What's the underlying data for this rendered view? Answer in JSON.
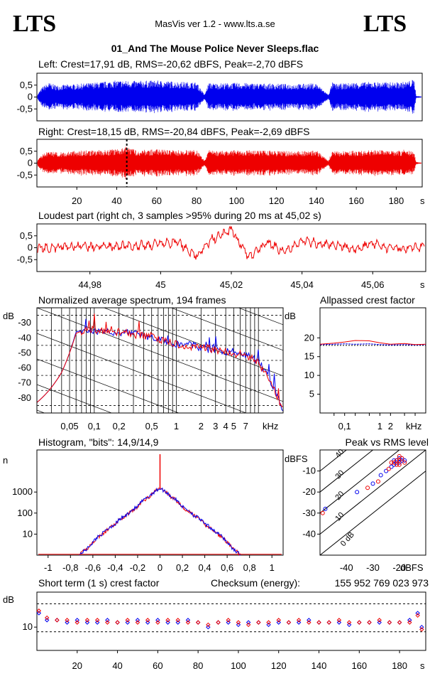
{
  "header": {
    "logo_left": "LTS",
    "logo_right": "LTS",
    "app_title": "MasVis ver 1.2 - www.lts.a.se",
    "file_name": "01_And The Mouse Police Never Sleeps.flac"
  },
  "colors": {
    "left": "#0000ee",
    "right": "#ee0000",
    "grid": "#000000"
  },
  "panels": {
    "left_waveform": {
      "title": "Left: Crest=17,91 dB, RMS=-20,62 dBFS, Peak=-2,70 dBFS",
      "ytick_labels": [
        "0,5",
        "0",
        "-0,5"
      ]
    },
    "right_waveform": {
      "title": "Right: Crest=18,15 dB, RMS=-20,84 dBFS, Peak=-2,69 dBFS",
      "ytick_labels": [
        "0,5",
        "0",
        "-0,5"
      ],
      "xtick_labels": [
        "20",
        "40",
        "60",
        "80",
        "100",
        "120",
        "140",
        "160",
        "180"
      ],
      "x_unit": "s",
      "loudest_marker_s": 45.02
    },
    "loudest_part": {
      "title": "Loudest part (right ch, 3 samples >95% during 20 ms at 45,02 s)",
      "ytick_labels": [
        "0,5",
        "0",
        "-0,5"
      ],
      "xtick_labels": [
        "44,98",
        "45",
        "45,02",
        "45,04",
        "45,06"
      ],
      "x_unit": "s"
    },
    "spectrum": {
      "title": "Normalized average spectrum, 194 frames",
      "y_unit": "dB",
      "ytick_labels": [
        "-30",
        "-40",
        "-50",
        "-60",
        "-70",
        "-80"
      ],
      "xtick_labels": [
        "0,05",
        "0,1",
        "0,2",
        "0,5",
        "1",
        "2",
        "3",
        "4",
        "5",
        "7"
      ],
      "x_unit": "kHz"
    },
    "allpassed": {
      "title": "Allpassed crest factor",
      "y_unit": "dB",
      "ytick_labels": [
        "20",
        "15",
        "10",
        "5"
      ],
      "xtick_labels": [
        "0,1",
        "1",
        "2"
      ],
      "x_unit": "kHz"
    },
    "histogram": {
      "title": "Histogram, \"bits\": 14,9/14,9",
      "y_unit": "n",
      "ytick_labels": [
        "1000",
        "100",
        "10"
      ],
      "xtick_labels": [
        "-1",
        "-0,8",
        "-0,6",
        "-0,4",
        "-0,2",
        "0",
        "0,2",
        "0,4",
        "0,6",
        "0,8",
        "1"
      ]
    },
    "peak_rms": {
      "title": "Peak vs RMS level",
      "y_unit": "dBFS",
      "ytick_labels": [
        "-10",
        "-20",
        "-30",
        "-40"
      ],
      "xtick_labels": [
        "-40",
        "-30",
        "-20"
      ],
      "x_unit": "dBFS",
      "diag_labels": [
        "40",
        "30",
        "20",
        "10",
        "0 dB"
      ]
    },
    "short_term": {
      "title": "Short term (1 s) crest factor",
      "checksum_label": "Checksum (energy):",
      "checksum_value": "155 952 769 023 973",
      "y_unit": "dB",
      "ytick_labels": [
        "10"
      ],
      "xtick_labels": [
        "20",
        "40",
        "60",
        "80",
        "100",
        "120",
        "140",
        "160",
        "180"
      ],
      "x_unit": "s"
    }
  },
  "chart_data": [
    {
      "type": "area",
      "title": "Left: Crest=17,91 dB, RMS=-20,62 dBFS, Peak=-2,70 dBFS",
      "xlabel": "s",
      "ylabel": "",
      "xlim": [
        0,
        193
      ],
      "ylim": [
        -1,
        1
      ],
      "x": [
        0,
        3,
        6,
        10,
        20,
        30,
        40,
        50,
        60,
        70,
        80,
        84,
        86,
        90,
        100,
        110,
        120,
        130,
        140,
        146,
        148,
        150,
        160,
        170,
        180,
        185,
        189,
        190,
        193
      ],
      "series": [
        {
          "values": [
            0.08,
            0.45,
            0.6,
            0.5,
            0.55,
            0.62,
            0.7,
            0.68,
            0.7,
            0.65,
            0.62,
            0.1,
            0.6,
            0.58,
            0.6,
            0.58,
            0.56,
            0.55,
            0.58,
            0.1,
            0.62,
            0.55,
            0.62,
            0.64,
            0.62,
            0.65,
            0.75,
            0.05,
            0.02
          ]
        }
      ]
    },
    {
      "type": "area",
      "title": "Right: Crest=18,15 dB, RMS=-20,84 dBFS, Peak=-2,69 dBFS",
      "xlabel": "s",
      "ylabel": "",
      "xlim": [
        0,
        193
      ],
      "ylim": [
        -1,
        1
      ],
      "x": [
        0,
        3,
        6,
        10,
        20,
        30,
        40,
        45,
        50,
        60,
        70,
        80,
        84,
        86,
        90,
        100,
        110,
        120,
        130,
        140,
        146,
        148,
        150,
        160,
        170,
        180,
        185,
        189,
        190,
        193
      ],
      "series": [
        {
          "values": [
            0.08,
            0.4,
            0.5,
            0.45,
            0.52,
            0.55,
            0.6,
            0.7,
            0.55,
            0.58,
            0.55,
            0.56,
            0.1,
            0.55,
            0.52,
            0.55,
            0.54,
            0.52,
            0.5,
            0.55,
            0.1,
            0.55,
            0.5,
            0.52,
            0.55,
            0.53,
            0.58,
            0.45,
            0.05,
            0.02
          ]
        }
      ]
    },
    {
      "type": "line",
      "title": "Loudest part (right ch, 3 samples >95% during 20 ms at 45,02 s)",
      "xlabel": "s",
      "ylabel": "",
      "xlim": [
        44.965,
        45.075
      ],
      "ylim": [
        -1,
        1
      ],
      "x": [
        44.965,
        44.975,
        44.985,
        44.995,
        45.0,
        45.005,
        45.01,
        45.015,
        45.02,
        45.025,
        45.03,
        45.035,
        45.04,
        45.045,
        45.05,
        45.055,
        45.06,
        45.065,
        45.075
      ],
      "series": [
        {
          "name": "right",
          "values": [
            -0.02,
            0.05,
            0.05,
            0.1,
            0.15,
            0.25,
            -0.35,
            0.4,
            0.75,
            -0.4,
            0.25,
            -0.2,
            0.3,
            0.15,
            0.15,
            -0.1,
            0.2,
            -0.05,
            0.05
          ]
        }
      ]
    },
    {
      "type": "line",
      "title": "Normalized average spectrum, 194 frames",
      "xlabel": "kHz",
      "ylabel": "dB",
      "xlim": [
        0.02,
        20
      ],
      "ylim": [
        -90,
        -20
      ],
      "log_x": true,
      "x": [
        0.02,
        0.03,
        0.04,
        0.05,
        0.06,
        0.08,
        0.1,
        0.15,
        0.2,
        0.3,
        0.5,
        0.7,
        1,
        1.5,
        2,
        3,
        4,
        5,
        6,
        7,
        8,
        10,
        12,
        15,
        20
      ],
      "series": [
        {
          "name": "left",
          "values": [
            -83,
            -73,
            -63,
            -50,
            -36,
            -34,
            -36,
            -35,
            -37,
            -37,
            -40,
            -42,
            -44,
            -45,
            -47,
            -48,
            -49,
            -50,
            -51,
            -51,
            -52,
            -56,
            -62,
            -72,
            -88
          ]
        },
        {
          "name": "right",
          "values": [
            -83,
            -73,
            -63,
            -50,
            -37,
            -34,
            -35,
            -36,
            -36,
            -38,
            -39,
            -42,
            -44,
            -46,
            -46,
            -48,
            -49,
            -51,
            -50,
            -52,
            -53,
            -57,
            -63,
            -73,
            -88
          ]
        }
      ]
    },
    {
      "type": "line",
      "title": "Allpassed crest factor",
      "xlabel": "kHz",
      "ylabel": "dB",
      "xlim": [
        0.02,
        20
      ],
      "ylim": [
        0,
        28
      ],
      "log_x": true,
      "x": [
        0.02,
        0.05,
        0.1,
        0.2,
        0.5,
        1,
        2,
        5,
        10,
        20
      ],
      "series": [
        {
          "name": "left",
          "values": [
            18.2,
            18.3,
            18.4,
            18.3,
            18.4,
            18.2,
            18.1,
            18.2,
            18.1,
            18.2
          ]
        },
        {
          "name": "right",
          "values": [
            18.3,
            18.6,
            18.9,
            19.3,
            19.2,
            18.7,
            18.3,
            18.5,
            18.2,
            18.3
          ]
        }
      ]
    },
    {
      "type": "line",
      "title": "Histogram, \"bits\": 14,9/14,9",
      "xlabel": "",
      "ylabel": "n",
      "xlim": [
        -1.1,
        1.1
      ],
      "ylim": [
        1,
        100000
      ],
      "log_y": true,
      "x": [
        -0.72,
        -0.65,
        -0.6,
        -0.5,
        -0.4,
        -0.3,
        -0.2,
        -0.1,
        0,
        0.1,
        0.2,
        0.3,
        0.4,
        0.5,
        0.6,
        0.65,
        0.72
      ],
      "series": [
        {
          "name": "left",
          "values": [
            1,
            2,
            4,
            12,
            30,
            80,
            200,
            600,
            1500,
            600,
            200,
            80,
            30,
            12,
            4,
            2,
            1
          ]
        },
        {
          "name": "right",
          "values": [
            1,
            2,
            4,
            11,
            28,
            78,
            190,
            580,
            1500,
            580,
            190,
            78,
            28,
            11,
            4,
            2,
            1
          ]
        }
      ]
    },
    {
      "type": "scatter",
      "title": "Peak vs RMS level",
      "xlabel": "dBFS",
      "ylabel": "dBFS",
      "xlim": [
        -50,
        -10
      ],
      "ylim": [
        -50,
        0
      ],
      "series": [
        {
          "name": "left",
          "points": [
            [
              -22,
              -5
            ],
            [
              -21,
              -6
            ],
            [
              -20,
              -4
            ],
            [
              -19,
              -5
            ],
            [
              -23,
              -8
            ],
            [
              -22,
              -7
            ],
            [
              -21,
              -5
            ],
            [
              -20,
              -6
            ],
            [
              -25,
              -10
            ],
            [
              -27,
              -12
            ],
            [
              -30,
              -16
            ],
            [
              -36,
              -20
            ],
            [
              -48,
              -28
            ],
            [
              -19,
              -4
            ],
            [
              -18,
              -5
            ]
          ]
        },
        {
          "name": "right",
          "points": [
            [
              -21,
              -5
            ],
            [
              -20,
              -5
            ],
            [
              -22,
              -6
            ],
            [
              -19,
              -4
            ],
            [
              -21,
              -7
            ],
            [
              -23,
              -6
            ],
            [
              -20,
              -3
            ],
            [
              -24,
              -9
            ],
            [
              -28,
              -15
            ],
            [
              -32,
              -18
            ],
            [
              -49,
              -30
            ],
            [
              -18,
              -6
            ],
            [
              -20,
              -7
            ]
          ]
        }
      ]
    },
    {
      "type": "scatter",
      "title": "Short term (1 s) crest factor",
      "xlabel": "s",
      "ylabel": "dB",
      "xlim": [
        0,
        193
      ],
      "ylim": [
        0,
        25
      ],
      "x": [
        1,
        5,
        10,
        15,
        20,
        25,
        30,
        35,
        40,
        45,
        50,
        55,
        60,
        65,
        70,
        75,
        80,
        85,
        90,
        95,
        100,
        105,
        110,
        115,
        120,
        125,
        130,
        135,
        140,
        145,
        150,
        155,
        160,
        165,
        170,
        175,
        180,
        185,
        189,
        191
      ],
      "series": [
        {
          "name": "left",
          "values": [
            16,
            13,
            13,
            12,
            13,
            12,
            12,
            13,
            12,
            12,
            13,
            12,
            13,
            12,
            12,
            13,
            12,
            10,
            12,
            12,
            11,
            12,
            12,
            11,
            12,
            12,
            12,
            13,
            12,
            12,
            12,
            11,
            12,
            12,
            12,
            12,
            12,
            13,
            16,
            10
          ]
        },
        {
          "name": "right",
          "values": [
            17,
            14,
            13,
            13,
            12,
            13,
            13,
            12,
            12,
            13,
            12,
            13,
            12,
            13,
            13,
            12,
            12,
            11,
            12,
            13,
            12,
            11,
            12,
            12,
            13,
            12,
            13,
            12,
            12,
            12,
            13,
            12,
            12,
            12,
            13,
            12,
            12,
            12,
            15,
            9
          ]
        }
      ]
    }
  ]
}
